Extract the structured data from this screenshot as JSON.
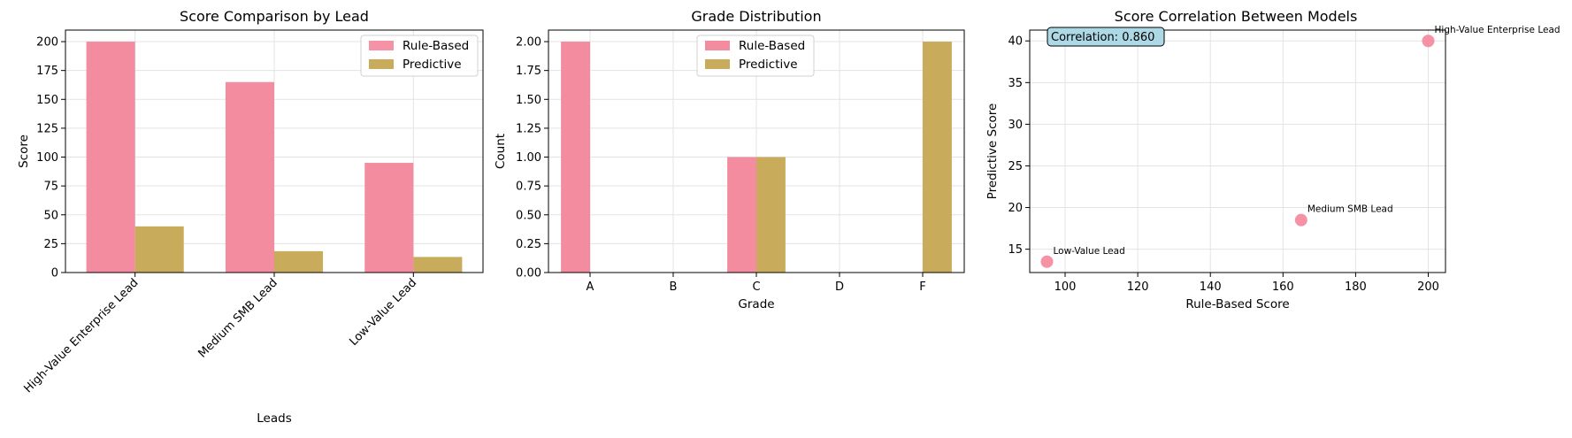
{
  "chart_data": [
    {
      "type": "bar",
      "title": "Score Comparison by Lead",
      "xlabel": "Leads",
      "ylabel": "Score",
      "categories": [
        "High-Value Enterprise Lead",
        "Medium SMB Lead",
        "Low-Value Lead"
      ],
      "series": [
        {
          "name": "Rule-Based",
          "values": [
            200,
            165,
            95
          ],
          "color": "#f48ca0"
        },
        {
          "name": "Predictive",
          "values": [
            40,
            18.5,
            13.5
          ],
          "color": "#c9ab5c"
        }
      ],
      "ylim": [
        0,
        210
      ],
      "yticks": [
        "0",
        "25",
        "50",
        "75",
        "100",
        "125",
        "150",
        "175",
        "200"
      ],
      "grid": true,
      "legend": "upper right"
    },
    {
      "type": "bar",
      "title": "Grade Distribution",
      "xlabel": "Grade",
      "ylabel": "Count",
      "categories": [
        "A",
        "B",
        "C",
        "D",
        "F"
      ],
      "series": [
        {
          "name": "Rule-Based",
          "values": [
            2,
            0,
            1,
            0,
            0
          ],
          "color": "#f48ca0"
        },
        {
          "name": "Predictive",
          "values": [
            0,
            0,
            1,
            0,
            2
          ],
          "color": "#c9ab5c"
        }
      ],
      "ylim": [
        0,
        2.1
      ],
      "yticks": [
        "0.00",
        "0.25",
        "0.50",
        "0.75",
        "1.00",
        "1.25",
        "1.50",
        "1.75",
        "2.00"
      ],
      "grid": true,
      "legend": "upper center"
    },
    {
      "type": "scatter",
      "title": "Score Correlation Between Models",
      "xlabel": "Rule-Based Score",
      "ylabel": "Predictive Score",
      "points": [
        {
          "x": 200,
          "y": 40,
          "label": "High-Value Enterprise Lead"
        },
        {
          "x": 165,
          "y": 18.5,
          "label": "Medium SMB Lead"
        },
        {
          "x": 95,
          "y": 13.5,
          "label": "Low-Value Lead"
        }
      ],
      "color": "#f48ca0",
      "xlim": [
        90.25,
        204.75
      ],
      "ylim": [
        12.2,
        41.3
      ],
      "xticks": [
        "100",
        "120",
        "140",
        "160",
        "180",
        "200"
      ],
      "yticks": [
        "15",
        "20",
        "25",
        "30",
        "35",
        "40"
      ],
      "annotation": "Correlation: 0.860",
      "annotation_bg": "#add8e6",
      "grid": true
    }
  ]
}
